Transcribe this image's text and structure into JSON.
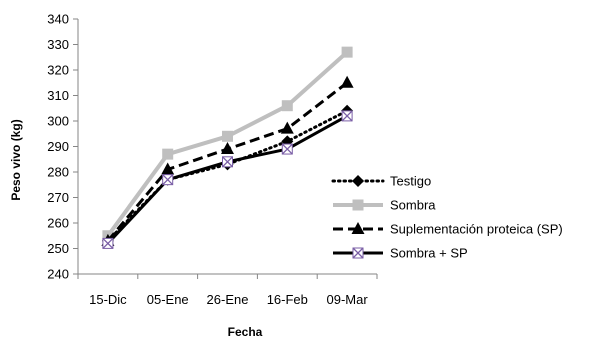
{
  "chart_data": {
    "type": "line",
    "categories": [
      "15-Dic",
      "05-Ene",
      "26-Ene",
      "16-Feb",
      "09-Mar"
    ],
    "ylabel": "Peso vivo (kg)",
    "xlabel": "Fecha",
    "ylim": [
      240,
      340
    ],
    "ytick_step": 10,
    "grid": false,
    "legend_position": "right",
    "series": [
      {
        "name": "Testigo",
        "values": [
          253,
          277,
          283,
          292,
          304
        ],
        "color": "#000000",
        "style": "dotted",
        "marker": "diamond"
      },
      {
        "name": "Sombra",
        "values": [
          255,
          287,
          294,
          306,
          327
        ],
        "color": "#bfbfbf",
        "style": "solid",
        "marker": "square"
      },
      {
        "name": "Suplementación proteica (SP)",
        "values": [
          253,
          281,
          289,
          297,
          315
        ],
        "color": "#000000",
        "style": "dashed",
        "marker": "triangle"
      },
      {
        "name": "Sombra + SP",
        "values": [
          252,
          277,
          284,
          289,
          302
        ],
        "color": "#000000",
        "style": "solid",
        "marker": "x-square"
      }
    ]
  }
}
